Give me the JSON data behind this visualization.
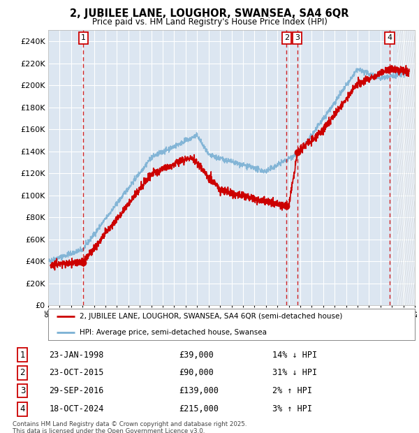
{
  "title": "2, JUBILEE LANE, LOUGHOR, SWANSEA, SA4 6QR",
  "subtitle": "Price paid vs. HM Land Registry's House Price Index (HPI)",
  "background_color": "#ffffff",
  "plot_bg_color": "#dce6f1",
  "grid_color": "#ffffff",
  "hpi_color": "#7ab0d4",
  "price_color": "#cc0000",
  "ytick_values": [
    0,
    20000,
    40000,
    60000,
    80000,
    100000,
    120000,
    140000,
    160000,
    180000,
    200000,
    220000,
    240000
  ],
  "purchases": [
    {
      "num": 1,
      "date_str": "23-JAN-1998",
      "date_x": 1998.06,
      "price": 39000,
      "hpi_pct": "14% ↓ HPI"
    },
    {
      "num": 2,
      "date_str": "23-OCT-2015",
      "date_x": 2015.81,
      "price": 90000,
      "hpi_pct": "31% ↓ HPI"
    },
    {
      "num": 3,
      "date_str": "29-SEP-2016",
      "date_x": 2016.75,
      "price": 139000,
      "hpi_pct": "2% ↑ HPI"
    },
    {
      "num": 4,
      "date_str": "18-OCT-2024",
      "date_x": 2024.8,
      "price": 215000,
      "hpi_pct": "3% ↑ HPI"
    }
  ],
  "legend_label_price": "2, JUBILEE LANE, LOUGHOR, SWANSEA, SA4 6QR (semi-detached house)",
  "legend_label_hpi": "HPI: Average price, semi-detached house, Swansea",
  "footnote": "Contains HM Land Registry data © Crown copyright and database right 2025.\nThis data is licensed under the Open Government Licence v3.0.",
  "xmin": 1995.0,
  "xmax": 2027.0,
  "ylim_max": 250000
}
